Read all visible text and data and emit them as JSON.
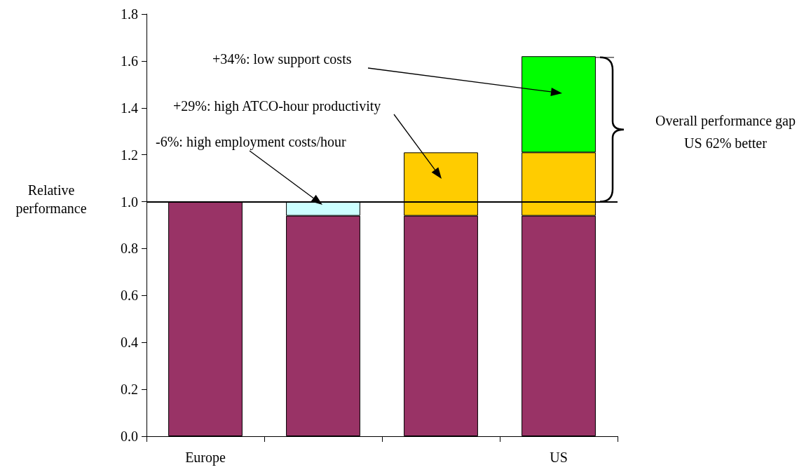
{
  "chart_data": {
    "type": "bar",
    "stacked": true,
    "ylabel": "Relative performance",
    "categories": [
      "Europe",
      null,
      null,
      "US"
    ],
    "series": [
      {
        "color": "#993366",
        "values": [
          1,
          0.94,
          0.94,
          0.94
        ]
      },
      {
        "color": "#ccffff",
        "values": [
          null,
          0.06,
          null,
          null
        ]
      },
      {
        "color": "#ffcc00",
        "values": [
          null,
          null,
          0.27,
          0.27
        ]
      },
      {
        "color": "#00ff00",
        "values": [
          null,
          null,
          null,
          0.41
        ]
      }
    ],
    "ylim": [
      0,
      1.8
    ],
    "yticks": [
      {
        "value": 0,
        "label": "0.0"
      },
      0.2,
      0.4,
      0.6,
      0.8,
      {
        "value": 1,
        "label": "1.0"
      },
      1.2,
      1.4,
      1.6,
      1.8
    ],
    "ref_lines": [
      {
        "axis": "y",
        "value": 1
      }
    ],
    "annotations": [
      "+34%: low support costs",
      "+29%: high ATCO-hour productivity",
      "-6%: high employment costs/hour",
      "Overall performance gap US 62% better"
    ]
  }
}
